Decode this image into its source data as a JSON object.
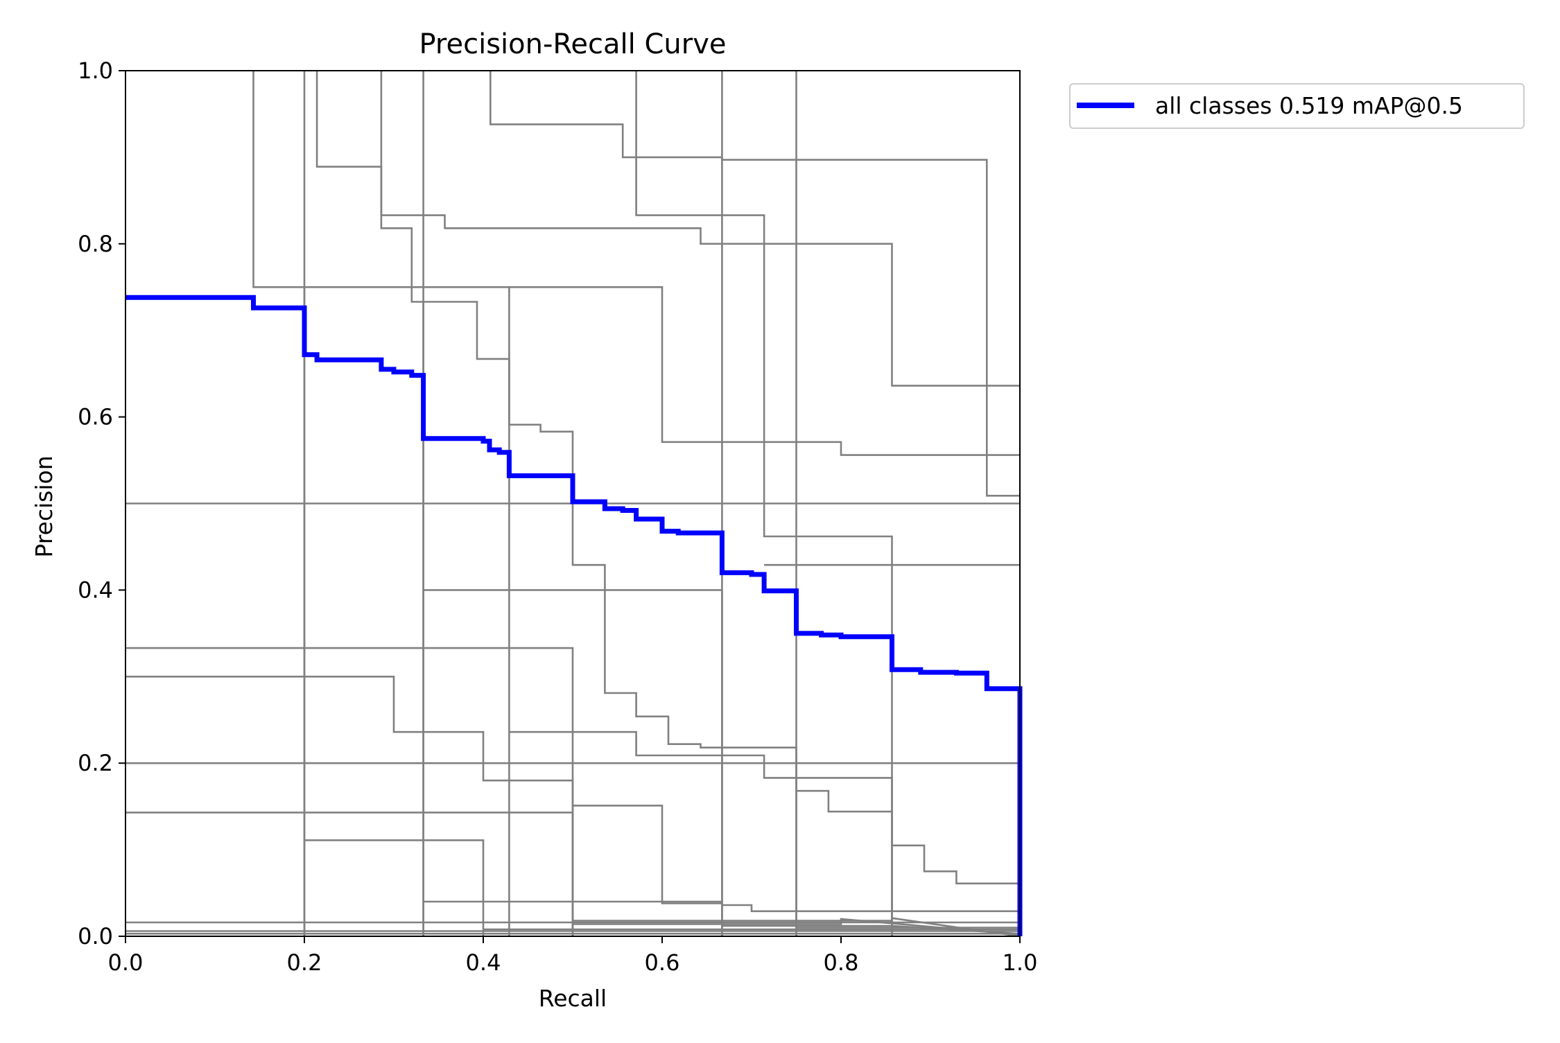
{
  "chart_data": {
    "type": "line",
    "title": "Precision-Recall Curve",
    "xlabel": "Recall",
    "ylabel": "Precision",
    "xlim": [
      0,
      1
    ],
    "ylim": [
      0,
      1
    ],
    "x_ticks": [
      {
        "value": 0.0,
        "label": "0.0"
      },
      {
        "value": 0.2,
        "label": "0.2"
      },
      {
        "value": 0.4,
        "label": "0.4"
      },
      {
        "value": 0.6,
        "label": "0.6"
      },
      {
        "value": 0.8,
        "label": "0.8"
      },
      {
        "value": 1.0,
        "label": "1.0"
      }
    ],
    "y_ticks": [
      {
        "value": 0.0,
        "label": "0.0"
      },
      {
        "value": 0.2,
        "label": "0.2"
      },
      {
        "value": 0.4,
        "label": "0.4"
      },
      {
        "value": 0.6,
        "label": "0.6"
      },
      {
        "value": 0.8,
        "label": "0.8"
      },
      {
        "value": 1.0,
        "label": "1.0"
      }
    ],
    "grid": false,
    "legend_position": "outside-top-right",
    "colors": {
      "class_curves": "#808080",
      "all_classes": "#0000ff"
    },
    "series": [
      {
        "name": "all classes 0.519 mAP@0.5",
        "highlight": true,
        "points": [
          [
            0,
            0.738
          ],
          [
            0.143,
            0.738
          ],
          [
            0.143,
            0.726
          ],
          [
            0.2,
            0.726
          ],
          [
            0.2,
            0.672
          ],
          [
            0.214,
            0.672
          ],
          [
            0.214,
            0.666
          ],
          [
            0.286,
            0.666
          ],
          [
            0.286,
            0.655
          ],
          [
            0.3,
            0.655
          ],
          [
            0.3,
            0.652
          ],
          [
            0.32,
            0.652
          ],
          [
            0.32,
            0.648
          ],
          [
            0.333,
            0.648
          ],
          [
            0.333,
            0.575
          ],
          [
            0.4,
            0.575
          ],
          [
            0.4,
            0.572
          ],
          [
            0.407,
            0.572
          ],
          [
            0.407,
            0.562
          ],
          [
            0.418,
            0.562
          ],
          [
            0.418,
            0.559
          ],
          [
            0.429,
            0.559
          ],
          [
            0.429,
            0.532
          ],
          [
            0.5,
            0.532
          ],
          [
            0.5,
            0.502
          ],
          [
            0.536,
            0.502
          ],
          [
            0.536,
            0.494
          ],
          [
            0.556,
            0.494
          ],
          [
            0.556,
            0.492
          ],
          [
            0.571,
            0.492
          ],
          [
            0.571,
            0.482
          ],
          [
            0.6,
            0.482
          ],
          [
            0.6,
            0.468
          ],
          [
            0.618,
            0.468
          ],
          [
            0.618,
            0.466
          ],
          [
            0.667,
            0.466
          ],
          [
            0.667,
            0.42
          ],
          [
            0.7,
            0.42
          ],
          [
            0.7,
            0.418
          ],
          [
            0.714,
            0.418
          ],
          [
            0.714,
            0.399
          ],
          [
            0.75,
            0.399
          ],
          [
            0.75,
            0.35
          ],
          [
            0.778,
            0.35
          ],
          [
            0.778,
            0.348
          ],
          [
            0.8,
            0.348
          ],
          [
            0.8,
            0.346
          ],
          [
            0.857,
            0.346
          ],
          [
            0.857,
            0.308
          ],
          [
            0.889,
            0.308
          ],
          [
            0.889,
            0.305
          ],
          [
            0.929,
            0.305
          ],
          [
            0.929,
            0.304
          ],
          [
            0.963,
            0.304
          ],
          [
            0.963,
            0.286
          ],
          [
            1.0,
            0.286
          ],
          [
            1.0,
            0.0
          ]
        ]
      },
      {
        "points": [
          [
            0.143,
            1.0
          ],
          [
            0.143,
            0.75
          ],
          [
            0.2,
            0.75
          ],
          [
            0.2,
            0.0
          ]
        ]
      },
      {
        "points": [
          [
            0.2,
            1.0
          ],
          [
            0.2,
            0.0
          ]
        ]
      },
      {
        "points": [
          [
            0.214,
            1.0
          ],
          [
            0.214,
            0.889
          ],
          [
            0.286,
            0.889
          ],
          [
            0.286,
            0.833
          ],
          [
            0.333,
            0.833
          ],
          [
            0.333,
            0.0
          ]
        ]
      },
      {
        "points": [
          [
            0.286,
            1.0
          ],
          [
            0.286,
            0.818
          ],
          [
            0.32,
            0.818
          ],
          [
            0.32,
            0.733
          ],
          [
            0.333,
            0.733
          ],
          [
            0.333,
            0.0
          ]
        ]
      },
      {
        "points": [
          [
            0.333,
            1.0
          ],
          [
            0.333,
            0.833
          ],
          [
            0.357,
            0.833
          ],
          [
            0.357,
            0.818
          ],
          [
            0.643,
            0.818
          ],
          [
            0.643,
            0.8
          ],
          [
            0.857,
            0.8
          ],
          [
            0.857,
            0.636
          ],
          [
            1.0,
            0.636
          ]
        ]
      },
      {
        "points": [
          [
            0.408,
            1.0
          ],
          [
            0.408,
            0.938
          ],
          [
            0.556,
            0.938
          ],
          [
            0.556,
            0.9
          ],
          [
            0.667,
            0.9
          ],
          [
            0.667,
            0.0
          ]
        ]
      },
      {
        "points": [
          [
            0.571,
            1.0
          ],
          [
            0.571,
            0.833
          ],
          [
            0.714,
            0.833
          ],
          [
            0.714,
            0.462
          ],
          [
            0.857,
            0.462
          ],
          [
            0.857,
            0.0
          ]
        ]
      },
      {
        "points": [
          [
            0.667,
            1.0
          ],
          [
            0.667,
            0.897
          ],
          [
            0.963,
            0.897
          ],
          [
            0.963,
            0.509
          ],
          [
            1.0,
            0.509
          ]
        ]
      },
      {
        "points": [
          [
            0.75,
            1.0
          ],
          [
            0.75,
            0.0
          ]
        ]
      },
      {
        "points": [
          [
            0.2,
            0.75
          ],
          [
            0.6,
            0.75
          ],
          [
            0.6,
            0.571
          ],
          [
            0.8,
            0.571
          ],
          [
            0.8,
            0.556
          ],
          [
            1.0,
            0.556
          ]
        ]
      },
      {
        "points": [
          [
            0.333,
            0.733
          ],
          [
            0.393,
            0.733
          ],
          [
            0.393,
            0.667
          ],
          [
            0.429,
            0.667
          ],
          [
            0.429,
            0.0
          ]
        ]
      },
      {
        "points": [
          [
            0.429,
            0.75
          ],
          [
            0.429,
            0.591
          ],
          [
            0.464,
            0.591
          ],
          [
            0.464,
            0.583
          ],
          [
            0.5,
            0.583
          ],
          [
            0.5,
            0.429
          ],
          [
            0.536,
            0.429
          ],
          [
            0.536,
            0.281
          ],
          [
            0.571,
            0.281
          ],
          [
            0.571,
            0.254
          ],
          [
            0.607,
            0.254
          ],
          [
            0.607,
            0.222
          ],
          [
            0.643,
            0.222
          ],
          [
            0.643,
            0.218
          ],
          [
            0.75,
            0.218
          ],
          [
            0.75,
            0.0
          ]
        ]
      },
      {
        "points": [
          [
            0,
            0.5
          ],
          [
            1.0,
            0.5
          ]
        ]
      },
      {
        "points": [
          [
            0.714,
            0.429
          ],
          [
            1.0,
            0.429
          ]
        ]
      },
      {
        "points": [
          [
            0.333,
            0.4
          ],
          [
            0.667,
            0.4
          ],
          [
            0.667,
            0.0
          ]
        ]
      },
      {
        "points": [
          [
            0,
            0.333
          ],
          [
            0.5,
            0.333
          ],
          [
            0.5,
            0.0
          ]
        ]
      },
      {
        "points": [
          [
            0,
            0.3
          ],
          [
            0.3,
            0.3
          ],
          [
            0.3,
            0.236
          ],
          [
            0.4,
            0.236
          ],
          [
            0.4,
            0.18
          ],
          [
            0.5,
            0.18
          ],
          [
            0.5,
            0.0
          ]
        ]
      },
      {
        "points": [
          [
            0.429,
            0.236
          ],
          [
            0.571,
            0.236
          ],
          [
            0.571,
            0.209
          ],
          [
            0.714,
            0.209
          ],
          [
            0.714,
            0.183
          ],
          [
            0.857,
            0.183
          ],
          [
            0.857,
            0.0
          ]
        ]
      },
      {
        "points": [
          [
            0,
            0.2
          ],
          [
            1.0,
            0.2
          ]
        ]
      },
      {
        "points": [
          [
            0.75,
            0.168
          ],
          [
            0.786,
            0.168
          ],
          [
            0.786,
            0.144
          ],
          [
            0.857,
            0.144
          ],
          [
            0.857,
            0.105
          ],
          [
            0.893,
            0.105
          ],
          [
            0.893,
            0.075
          ],
          [
            0.929,
            0.075
          ],
          [
            0.929,
            0.061
          ],
          [
            1.0,
            0.061
          ]
        ]
      },
      {
        "points": [
          [
            0.5,
            0.151
          ],
          [
            0.6,
            0.151
          ],
          [
            0.6,
            0.04
          ],
          [
            0.667,
            0.04
          ],
          [
            0.667,
            0.036
          ],
          [
            0.7,
            0.036
          ],
          [
            0.7,
            0.029
          ],
          [
            1.0,
            0.029
          ]
        ]
      },
      {
        "points": [
          [
            0,
            0.143
          ],
          [
            0.5,
            0.143
          ],
          [
            0.5,
            0.0
          ]
        ]
      },
      {
        "points": [
          [
            0.2,
            0.111
          ],
          [
            0.4,
            0.111
          ],
          [
            0.4,
            0.0
          ]
        ]
      },
      {
        "points": [
          [
            0.333,
            0.04
          ],
          [
            0.6,
            0.04
          ],
          [
            0.6,
            0.038
          ],
          [
            0.667,
            0.038
          ]
        ]
      },
      {
        "points": [
          [
            0,
            0.016
          ],
          [
            1.0,
            0.016
          ]
        ]
      },
      {
        "points": [
          [
            0.4,
            0.008
          ],
          [
            1.0,
            0.008
          ]
        ]
      },
      {
        "points": [
          [
            0.5,
            0.018
          ],
          [
            0.857,
            0.018
          ],
          [
            0.857,
            0.021
          ],
          [
            1.0,
            0.0
          ]
        ]
      },
      {
        "points": [
          [
            0.5,
            0.014
          ],
          [
            0.8,
            0.014
          ],
          [
            0.8,
            0.02
          ],
          [
            1.0,
            0.002
          ]
        ]
      },
      {
        "points": [
          [
            0.667,
            0.012
          ],
          [
            0.857,
            0.012
          ],
          [
            1.0,
            0.003
          ]
        ]
      },
      {
        "points": [
          [
            0.75,
            0.01
          ],
          [
            1.0,
            0.01
          ]
        ]
      },
      {
        "points": [
          [
            0,
            0.006
          ],
          [
            1.0,
            0.006
          ]
        ]
      },
      {
        "points": [
          [
            0,
            0.003
          ],
          [
            1.0,
            0.003
          ]
        ]
      }
    ]
  }
}
